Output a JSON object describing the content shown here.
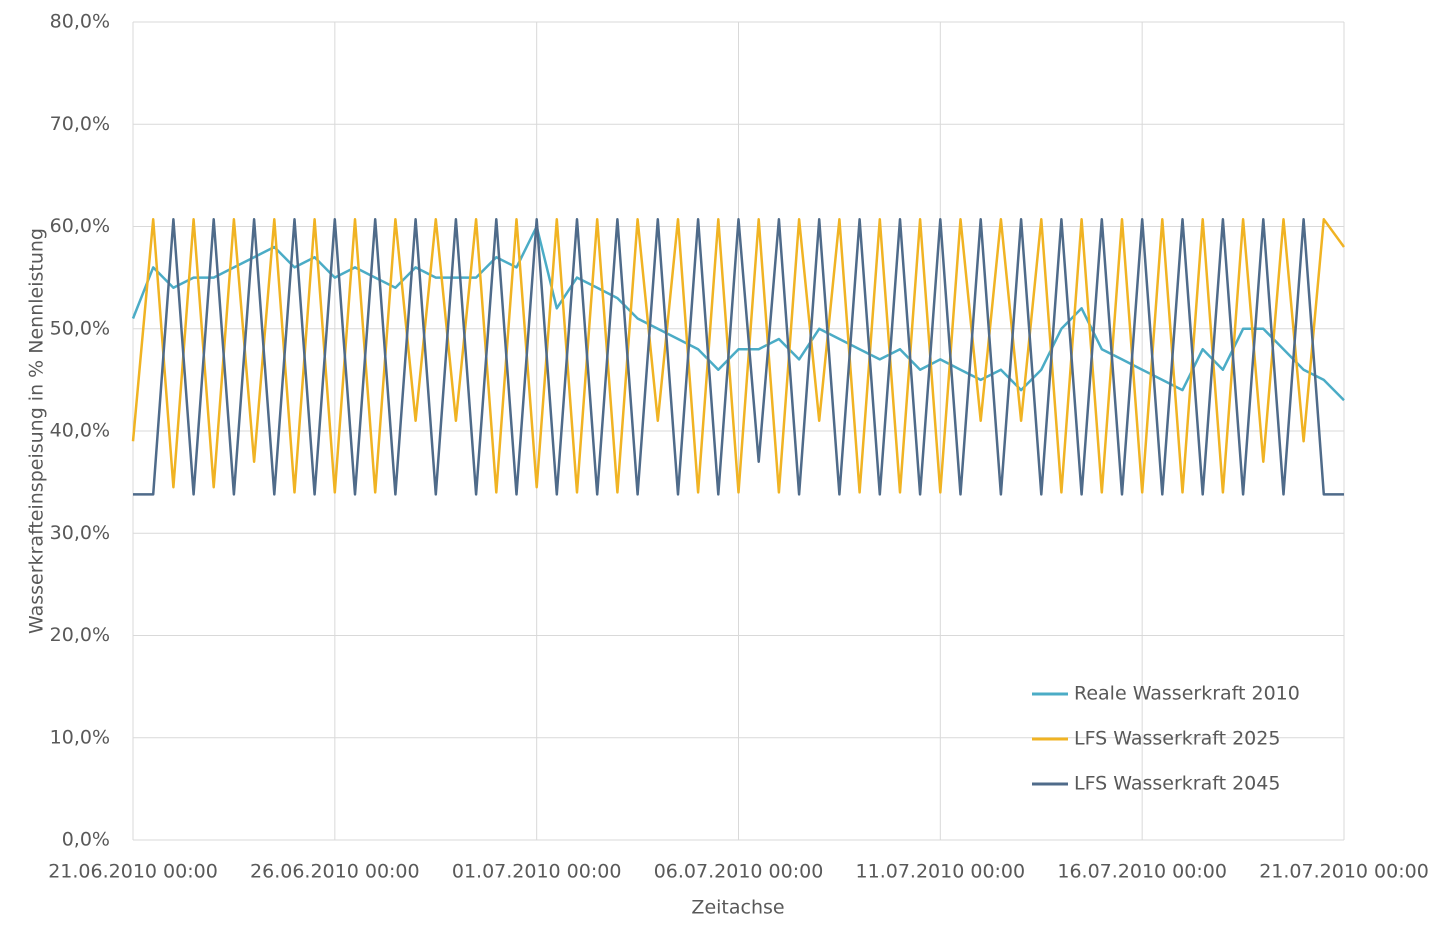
{
  "chart_data": {
    "type": "line",
    "xlabel": "Zeitachse",
    "ylabel": "Wasserkrafteinspeisung in % Nennleistung",
    "x": [
      "21.06.2010 00:00",
      "21.06.2010 12:00",
      "22.06.2010 00:00",
      "22.06.2010 12:00",
      "23.06.2010 00:00",
      "23.06.2010 12:00",
      "24.06.2010 00:00",
      "24.06.2010 12:00",
      "25.06.2010 00:00",
      "25.06.2010 12:00",
      "26.06.2010 00:00",
      "26.06.2010 12:00",
      "27.06.2010 00:00",
      "27.06.2010 12:00",
      "28.06.2010 00:00",
      "28.06.2010 12:00",
      "29.06.2010 00:00",
      "29.06.2010 12:00",
      "30.06.2010 00:00",
      "30.06.2010 12:00",
      "01.07.2010 00:00",
      "01.07.2010 12:00",
      "02.07.2010 00:00",
      "02.07.2010 12:00",
      "03.07.2010 00:00",
      "03.07.2010 12:00",
      "04.07.2010 00:00",
      "04.07.2010 12:00",
      "05.07.2010 00:00",
      "05.07.2010 12:00",
      "06.07.2010 00:00",
      "06.07.2010 12:00",
      "07.07.2010 00:00",
      "07.07.2010 12:00",
      "08.07.2010 00:00",
      "08.07.2010 12:00",
      "09.07.2010 00:00",
      "09.07.2010 12:00",
      "10.07.2010 00:00",
      "10.07.2010 12:00",
      "11.07.2010 00:00",
      "11.07.2010 12:00",
      "12.07.2010 00:00",
      "12.07.2010 12:00",
      "13.07.2010 00:00",
      "13.07.2010 12:00",
      "14.07.2010 00:00",
      "14.07.2010 12:00",
      "15.07.2010 00:00",
      "15.07.2010 12:00",
      "16.07.2010 00:00",
      "16.07.2010 12:00",
      "17.07.2010 00:00",
      "17.07.2010 12:00",
      "18.07.2010 00:00",
      "18.07.2010 12:00",
      "19.07.2010 00:00",
      "19.07.2010 12:00",
      "20.07.2010 00:00",
      "20.07.2010 12:00",
      "21.07.2010 00:00"
    ],
    "series": [
      {
        "name": "Reale Wasserkraft 2010",
        "color": "#4bacc6",
        "values": [
          51,
          56,
          54,
          55,
          55,
          56,
          57,
          58,
          56,
          57,
          55,
          56,
          55,
          54,
          56,
          55,
          55,
          55,
          57,
          56,
          60,
          52,
          55,
          54,
          53,
          51,
          50,
          49,
          48,
          46,
          48,
          48,
          49,
          47,
          50,
          49,
          48,
          47,
          48,
          46,
          47,
          46,
          45,
          46,
          44,
          46,
          50,
          52,
          48,
          47,
          46,
          45,
          44,
          48,
          46,
          50,
          50,
          48,
          46,
          45,
          43
        ]
      },
      {
        "name": "LFS Wasserkraft 2025",
        "color": "#f0b323",
        "values": [
          39,
          60.7,
          34.5,
          60.7,
          34.5,
          60.7,
          37,
          60.7,
          34,
          60.7,
          34,
          60.7,
          34,
          60.7,
          41,
          60.7,
          41,
          60.7,
          34,
          60.7,
          34.5,
          60.7,
          34,
          60.7,
          34,
          60.7,
          41,
          60.7,
          34,
          60.7,
          34,
          60.7,
          34,
          60.7,
          41,
          60.7,
          34,
          60.7,
          34,
          60.7,
          34,
          60.7,
          41,
          60.7,
          41,
          60.7,
          34,
          60.7,
          34,
          60.7,
          34,
          60.7,
          34,
          60.7,
          34,
          60.7,
          37,
          60.7,
          39,
          60.7,
          58
        ]
      },
      {
        "name": "LFS Wasserkraft 2045",
        "color": "#4f6b8a",
        "values": [
          33.8,
          33.8,
          60.7,
          33.8,
          60.7,
          33.8,
          60.7,
          33.8,
          60.7,
          33.8,
          60.7,
          33.8,
          60.7,
          33.8,
          60.7,
          33.8,
          60.7,
          33.8,
          60.7,
          33.8,
          60.7,
          33.8,
          60.7,
          33.8,
          60.7,
          33.8,
          60.7,
          33.8,
          60.7,
          33.8,
          60.7,
          37,
          60.7,
          33.8,
          60.7,
          33.8,
          60.7,
          33.8,
          60.7,
          33.8,
          60.7,
          33.8,
          60.7,
          33.8,
          60.7,
          33.8,
          60.7,
          33.8,
          60.7,
          33.8,
          60.7,
          33.8,
          60.7,
          33.8,
          60.7,
          33.8,
          60.7,
          33.8,
          60.7,
          33.8,
          33.8
        ]
      }
    ],
    "xlim": [
      "21.06.2010 00:00",
      "21.07.2010 00:00"
    ],
    "xticks": [
      "21.06.2010 00:00",
      "26.06.2010 00:00",
      "01.07.2010 00:00",
      "06.07.2010 00:00",
      "11.07.2010 00:00",
      "16.07.2010 00:00",
      "21.07.2010 00:00"
    ],
    "ylim": [
      0,
      80
    ],
    "yticks": [
      {
        "value": 0,
        "label": "0,0%"
      },
      {
        "value": 10,
        "label": "10,0%"
      },
      {
        "value": 20,
        "label": "20,0%"
      },
      {
        "value": 30,
        "label": "30,0%"
      },
      {
        "value": 40,
        "label": "40,0%"
      },
      {
        "value": 50,
        "label": "50,0%"
      },
      {
        "value": 60,
        "label": "60,0%"
      },
      {
        "value": 70,
        "label": "70,0%"
      },
      {
        "value": 80,
        "label": "80,0%"
      }
    ],
    "grid": true,
    "legend": "lower right"
  }
}
